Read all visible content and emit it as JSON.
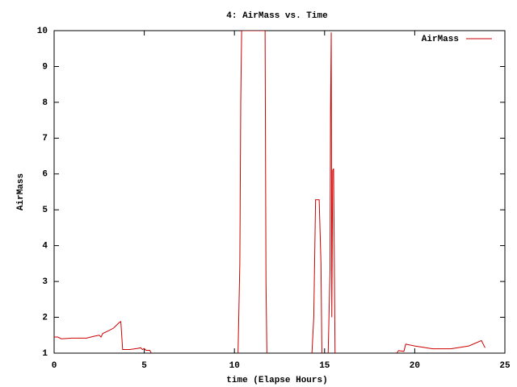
{
  "chart_data": {
    "type": "line",
    "title": "4: AirMass vs. Time",
    "x_label": "time (Elapse Hours)",
    "y_label": "AirMass",
    "x": [
      0,
      0.2,
      0.4,
      1.0,
      1.8,
      2.2,
      2.5,
      2.6,
      2.7,
      3.0,
      3.3,
      3.6,
      3.7,
      3.8,
      4.2,
      4.6,
      4.8,
      4.9,
      5.0,
      5.1,
      5.3,
      5.4,
      null,
      10.2,
      10.3,
      10.35,
      10.4,
      11.7,
      11.75,
      11.8,
      null,
      14.3,
      14.4,
      14.5,
      14.7,
      14.8,
      14.85,
      null,
      15.2,
      15.3,
      15.33,
      15.37,
      15.4,
      15.45,
      15.5,
      15.58,
      null,
      19.0,
      19.1,
      19.4,
      19.5,
      20.0,
      21.0,
      22.0,
      23.0,
      23.7,
      23.9
    ],
    "series": [
      {
        "name": "AirMass",
        "color": "#cc0000",
        "values": [
          1.45,
          1.45,
          1.4,
          1.42,
          1.42,
          1.47,
          1.5,
          1.45,
          1.55,
          1.62,
          1.7,
          1.85,
          1.88,
          1.1,
          1.1,
          1.13,
          1.15,
          1.1,
          1.13,
          1.08,
          1.08,
          1.0,
          null,
          1.0,
          3.5,
          8.0,
          10.0,
          10.0,
          3.0,
          1.0,
          null,
          1.0,
          2.0,
          5.28,
          5.28,
          3.5,
          1.0,
          null,
          1.0,
          3.3,
          7.7,
          9.95,
          2.0,
          6.1,
          6.15,
          1.0,
          null,
          1.0,
          1.07,
          1.05,
          1.25,
          1.2,
          1.12,
          1.12,
          1.2,
          1.35,
          1.15
        ]
      }
    ],
    "xlim": [
      0,
      25
    ],
    "xticks": [
      0,
      5,
      10,
      15,
      20,
      25
    ],
    "ylim": [
      1,
      10
    ],
    "yticks": [
      1,
      2,
      3,
      4,
      5,
      6,
      7,
      8,
      9,
      10
    ],
    "legend": "top-right"
  }
}
